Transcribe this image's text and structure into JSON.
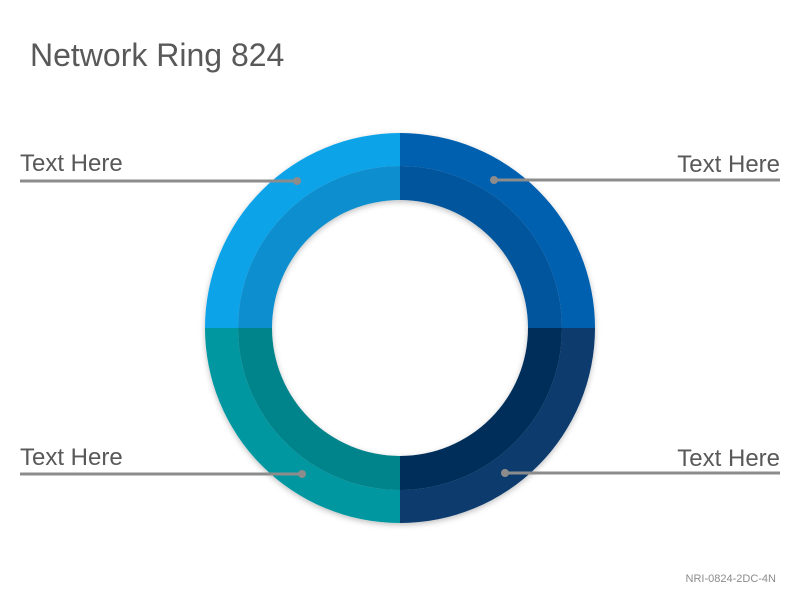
{
  "header": {
    "title": "Network Ring 824"
  },
  "nodes": [
    {
      "label": "Text Here"
    },
    {
      "label": "Text Here"
    },
    {
      "label": "Text Here"
    },
    {
      "label": "Text Here"
    }
  ],
  "footer": {
    "code": "NRI-0824-2DC-4N"
  }
}
